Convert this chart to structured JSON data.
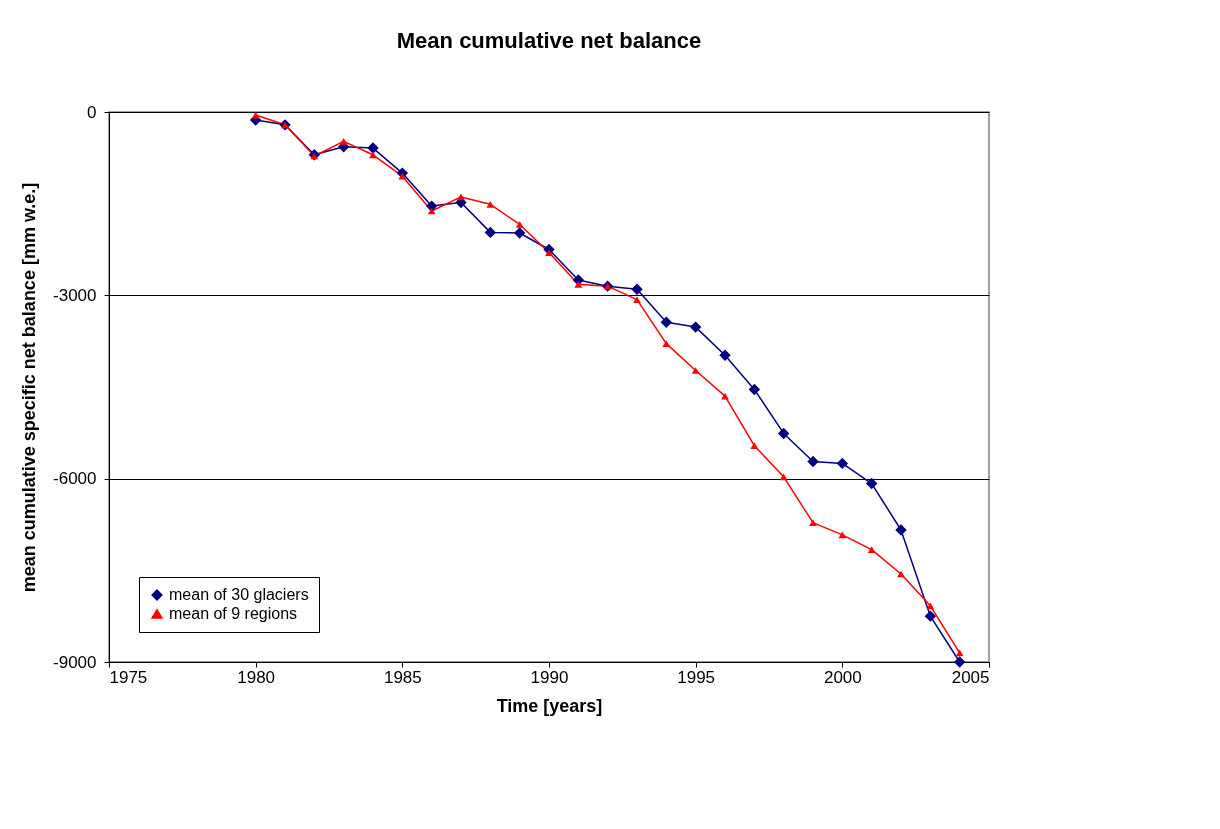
{
  "chart_data": {
    "type": "line",
    "title": "Mean cumulative net balance",
    "xlabel": "Time [years]",
    "ylabel": "mean cumulative specific net balance [mm w.e.]",
    "x": [
      1980,
      1981,
      1982,
      1983,
      1984,
      1985,
      1986,
      1987,
      1988,
      1989,
      1990,
      1991,
      1992,
      1993,
      1994,
      1995,
      1996,
      1997,
      1998,
      1999,
      2000,
      2001,
      2002,
      2003,
      2004
    ],
    "series": [
      {
        "name": "mean of 30 glaciers",
        "color": "#000080",
        "marker": "diamond",
        "values": [
          -130,
          -210,
          -700,
          -570,
          -590,
          -1000,
          -1540,
          -1480,
          -1970,
          -1980,
          -2250,
          -2750,
          -2850,
          -2900,
          -3440,
          -3520,
          -3980,
          -4540,
          -5260,
          -5720,
          -5750,
          -6080,
          -6840,
          -8250,
          -9000
        ]
      },
      {
        "name": "mean of 9 regions",
        "color": "#ff0000",
        "marker": "triangle",
        "values": [
          -50,
          -210,
          -720,
          -480,
          -700,
          -1050,
          -1620,
          -1390,
          -1510,
          -1840,
          -2300,
          -2820,
          -2850,
          -3070,
          -3790,
          -4230,
          -4650,
          -5460,
          -5970,
          -6720,
          -6920,
          -7160,
          -7560,
          -8080,
          -8850
        ]
      }
    ],
    "xlim": [
      1975,
      2005
    ],
    "xticks": [
      1975,
      1980,
      1985,
      1990,
      1995,
      2000,
      2005
    ],
    "ylim": [
      -9000,
      0
    ],
    "yticks": [
      -9000,
      -6000,
      -3000,
      0
    ],
    "grid": "y",
    "legend": "bottom left",
    "line_style": "solid"
  }
}
